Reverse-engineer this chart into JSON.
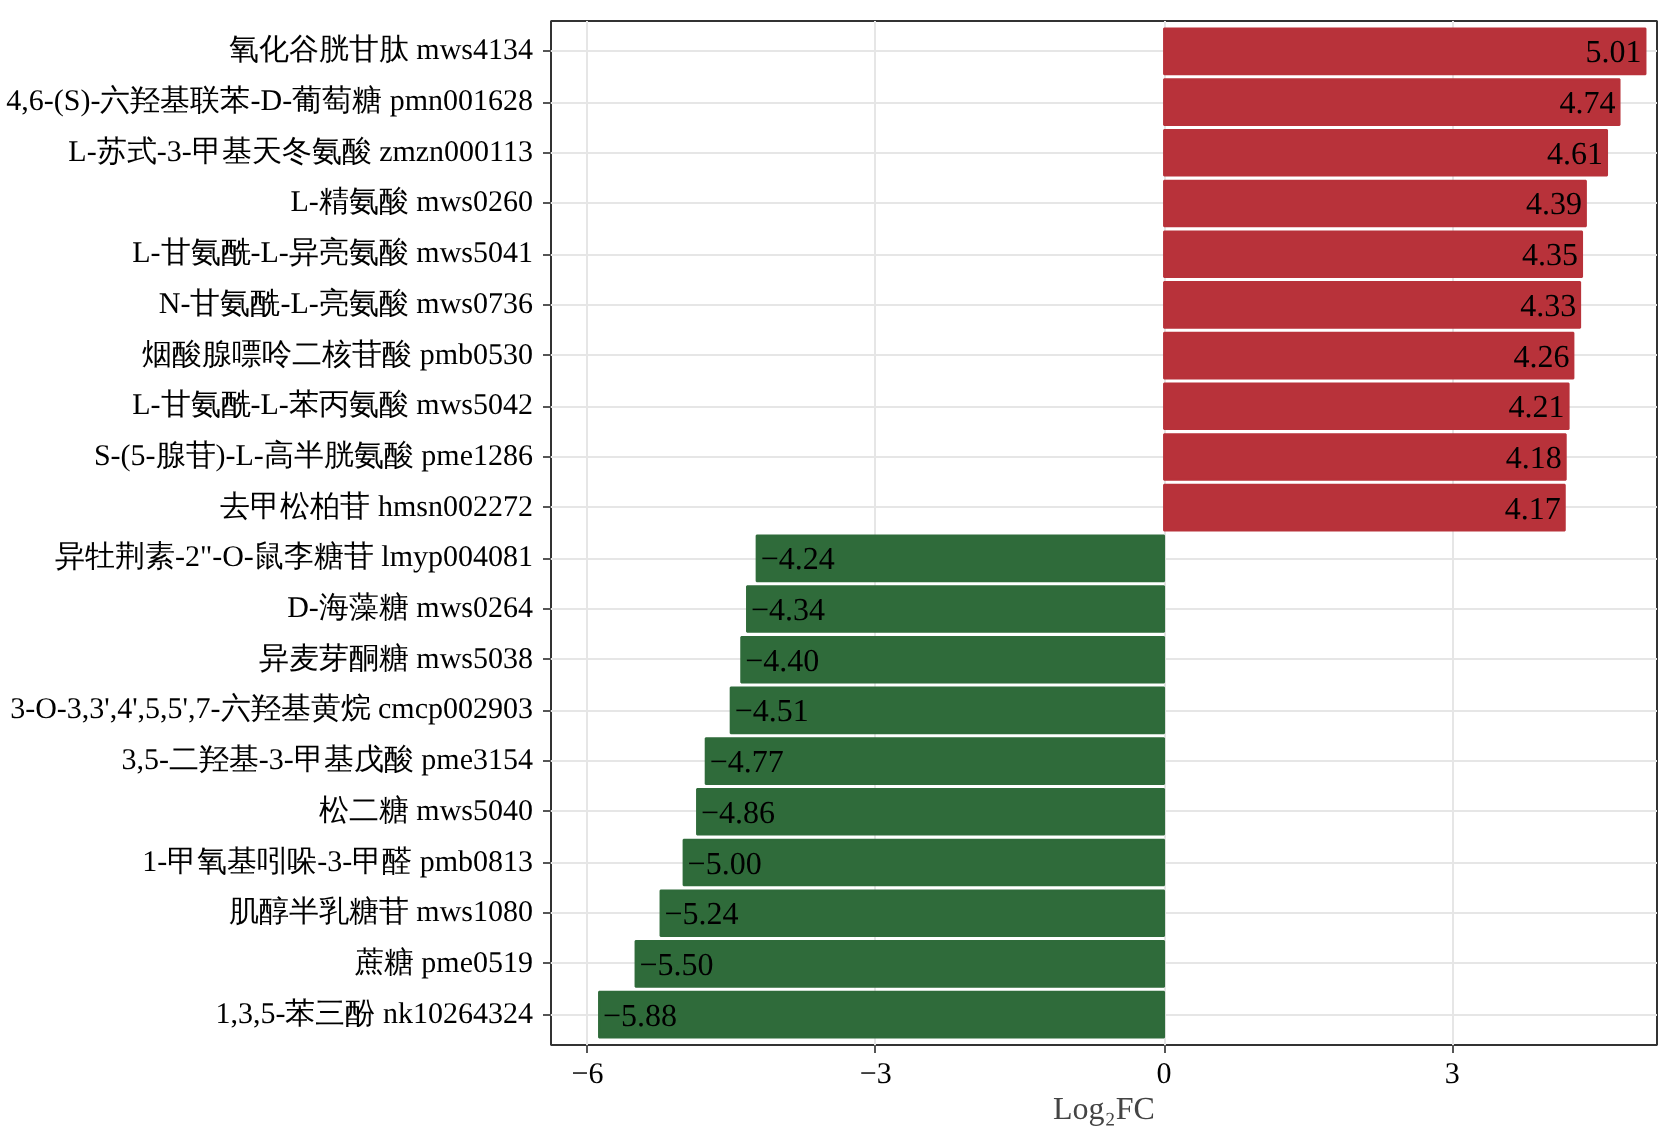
{
  "chart_data": {
    "type": "bar",
    "orientation": "horizontal",
    "categories": [
      "氧化谷胱甘肽 mws4134",
      "4,6-(S)-六羟基联苯-D-葡萄糖 pmn001628",
      "L-苏式-3-甲基天冬氨酸 zmzn000113",
      "L-精氨酸 mws0260",
      "L-甘氨酰-L-异亮氨酸 mws5041",
      "N-甘氨酰-L-亮氨酸 mws0736",
      "烟酸腺嘌呤二核苷酸 pmb0530",
      "L-甘氨酰-L-苯丙氨酸 mws5042",
      "S-(5-腺苷)-L-高半胱氨酸 pme1286",
      "去甲松柏苷 hmsn002272",
      "异牡荆素-2\"-O-鼠李糖苷 lmyp004081",
      "D-海藻糖 mws0264",
      "异麦芽酮糖 mws5038",
      "3-O-3,3',4',5,5',7-六羟基黄烷 cmcp002903",
      "3,5-二羟基-3-甲基戊酸 pme3154",
      "松二糖 mws5040",
      "1-甲氧基吲哚-3-甲醛 pmb0813",
      "肌醇半乳糖苷 mws1080",
      "蔗糖 pme0519",
      "1,3,5-苯三酚 nk10264324"
    ],
    "values": [
      5.01,
      4.74,
      4.61,
      4.39,
      4.35,
      4.33,
      4.26,
      4.21,
      4.18,
      4.17,
      -4.24,
      -4.34,
      -4.4,
      -4.51,
      -4.77,
      -4.86,
      -5.0,
      -5.24,
      -5.5,
      -5.88
    ],
    "value_labels": [
      "5.01",
      "4.74",
      "4.61",
      "4.39",
      "4.35",
      "4.33",
      "4.26",
      "4.21",
      "4.18",
      "4.17",
      "−4.24",
      "−4.34",
      "−4.40",
      "−4.51",
      "−4.77",
      "−4.86",
      "−5.00",
      "−5.24",
      "−5.50",
      "−5.88"
    ],
    "colors": [
      "#b8323a",
      "#b8323a",
      "#b8323a",
      "#b8323a",
      "#b8323a",
      "#b8323a",
      "#b8323a",
      "#b8323a",
      "#b8323a",
      "#b8323a",
      "#2f6b3a",
      "#2f6b3a",
      "#2f6b3a",
      "#2f6b3a",
      "#2f6b3a",
      "#2f6b3a",
      "#2f6b3a",
      "#2f6b3a",
      "#2f6b3a",
      "#2f6b3a"
    ],
    "xlabel": "Log₂FC",
    "xlim": [
      -6.38,
      5.13
    ],
    "xticks": [
      {
        "value": -6,
        "label": "−6"
      },
      {
        "value": -3,
        "label": "−3"
      },
      0,
      3
    ],
    "grid": true
  }
}
